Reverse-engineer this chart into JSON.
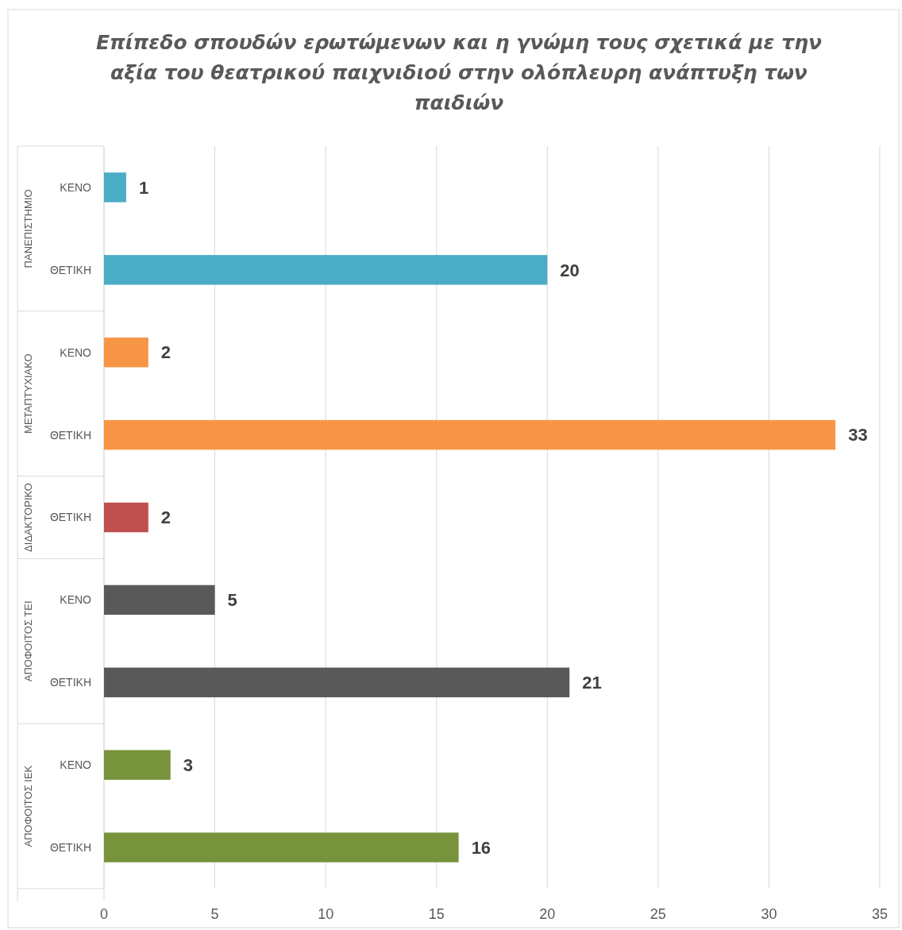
{
  "chart_data": {
    "type": "bar",
    "orientation": "horizontal",
    "title": "Επίπεδο σπουδών ερωτώμενων και η γνώμη τους σχετικά με την αξία του θεατρικού παιχνιδιού στην ολόπλευρη ανάπτυξη των παιδιών",
    "categories": [
      "ΚΕΝΟ",
      "ΘΕΤΙΚΗ",
      "ΚΕΝΟ",
      "ΘΕΤΙΚΗ",
      "ΘΕΤΙΚΗ",
      "ΚΕΝΟ",
      "ΘΕΤΙΚΗ",
      "ΚΕΝΟ",
      "ΘΕΤΙΚΗ"
    ],
    "annotations": [
      "ΠΑΝΕΠΙΣΤΗΜΙΟ",
      "ΜΕΤΑΠΤΥΧΙΑΚΟ",
      "ΔΙΔΑΚΤΟΡΙΚΟ",
      "ΑΠΟΦΟΙΤΟΣ ΤΕΙ",
      "ΑΠΟΦΟΙΤΟΣ ΙΕΚ"
    ],
    "series": [
      {
        "color": "#4bacc6",
        "values": [
          1,
          20,
          null,
          null,
          null,
          null,
          null,
          null,
          null
        ]
      },
      {
        "color": "#f79646",
        "values": [
          null,
          null,
          2,
          33,
          null,
          null,
          null,
          null,
          null
        ]
      },
      {
        "color": "#c0504d",
        "values": [
          null,
          null,
          null,
          null,
          2,
          null,
          null,
          null,
          null
        ]
      },
      {
        "color": "#595959",
        "values": [
          null,
          null,
          null,
          null,
          null,
          5,
          21,
          null,
          null
        ]
      },
      {
        "color": "#77933c",
        "values": [
          null,
          null,
          null,
          null,
          null,
          null,
          null,
          3,
          16
        ]
      }
    ],
    "xlim": [
      0,
      35
    ],
    "xticks": [
      0,
      5,
      10,
      15,
      20,
      25,
      30,
      35
    ],
    "grid": "x",
    "data_labels": true
  }
}
